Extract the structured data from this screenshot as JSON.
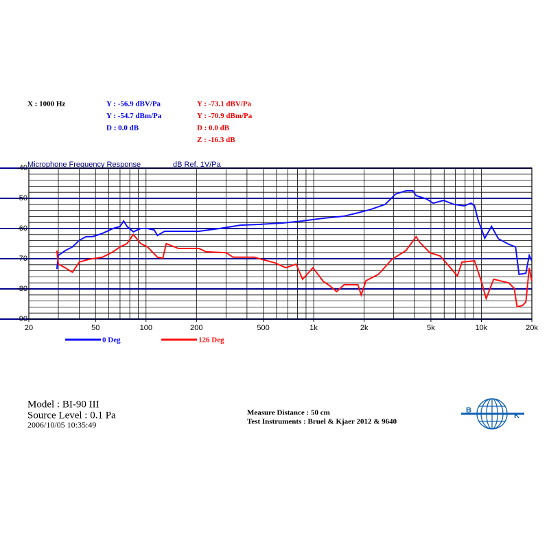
{
  "chart_data": {
    "type": "line",
    "title": "Microphone Frequency Response",
    "ylabel": "dB Ref. 1V/Pa",
    "xscale": "log",
    "grid": true,
    "xlim": [
      20,
      20000
    ],
    "ylim": [
      -90,
      -40
    ],
    "xticks": [
      20,
      50,
      100,
      200,
      500,
      {
        "value": 1000,
        "label": "1k"
      },
      {
        "value": 2000,
        "label": "2k"
      },
      {
        "value": 5000,
        "label": "5k"
      },
      {
        "value": 10000,
        "label": "10k"
      },
      {
        "value": 20000,
        "label": "20k"
      }
    ],
    "yticks": [
      -40,
      -50,
      -60,
      -70,
      -80,
      -90
    ],
    "cursor": {
      "x": "X : 1000 Hz",
      "readouts": [
        {
          "color": "#0000ee",
          "lines": [
            "Y : -56.9 dBV/Pa",
            "Y : -54.7 dBm/Pa",
            "D : 0.0 dB"
          ]
        },
        {
          "color": "#ee0000",
          "lines": [
            "Y : -73.1 dBV/Pa",
            "Y : -70.9 dBm/Pa",
            "D : 0.0 dB",
            "Z : -16.3 dB"
          ]
        }
      ]
    },
    "series": [
      {
        "name": "0 Deg",
        "color": "#1010ff",
        "x": [
          29.4,
          30,
          33,
          36.4,
          40,
          43.9,
          48,
          55,
          63.6,
          70,
          73.6,
          77,
          84,
          93,
          102,
          112,
          117,
          129,
          156,
          207,
          274,
          365,
          484,
          644,
          858,
          1140,
          1519,
          1834,
          2213,
          2670,
          3076,
          3550,
          3897,
          4083,
          4705,
          5164,
          5949,
          6855,
          7898,
          8680,
          9100,
          9540,
          10480,
          11500,
          12640,
          14560,
          16000,
          16770,
          18430,
          19300,
          20000
        ],
        "values": [
          -73.4,
          -68.9,
          -67.3,
          -66.1,
          -63.9,
          -62.7,
          -62.7,
          -61.6,
          -60,
          -59.3,
          -57.5,
          -59.3,
          -61.1,
          -60,
          -60,
          -60.5,
          -62.3,
          -60.9,
          -60.9,
          -60.9,
          -60,
          -58.9,
          -58.6,
          -58.2,
          -57.5,
          -56.6,
          -55.9,
          -54.8,
          -53.6,
          -52,
          -48.6,
          -47.5,
          -47.5,
          -49.1,
          -50.2,
          -51.6,
          -50.7,
          -52,
          -52.5,
          -51.6,
          -52.5,
          -57,
          -63.2,
          -59.3,
          -63.4,
          -65.2,
          -66.1,
          -75.2,
          -74.8,
          -68.9,
          -70.7
        ]
      },
      {
        "name": "126 Deg",
        "color": "#ff1010",
        "x": [
          29.4,
          30,
          33,
          36.4,
          40,
          45.7,
          55,
          63.6,
          70,
          77,
          84,
          93,
          102,
          117,
          126,
          132,
          156,
          207,
          228,
          301,
          330,
          441,
          589,
          681,
          786,
          858,
          990,
          1140,
          1250,
          1370,
          1519,
          1834,
          1920,
          2050,
          2430,
          2930,
          3550,
          4083,
          4280,
          4930,
          5680,
          6540,
          7190,
          7670,
          9100,
          10000,
          10680,
          11840,
          14560,
          15700,
          16330,
          17600,
          18430,
          19300,
          20000
        ],
        "values": [
          -67.3,
          -71.8,
          -73,
          -74.5,
          -71.1,
          -70.2,
          -69.5,
          -67.7,
          -66.1,
          -65,
          -62,
          -65,
          -66.1,
          -69.5,
          -69.8,
          -65,
          -66.6,
          -66.6,
          -67.7,
          -68,
          -69.5,
          -69.5,
          -71.4,
          -73,
          -71.8,
          -76.8,
          -73,
          -77.5,
          -79,
          -80.9,
          -78.6,
          -78.6,
          -82,
          -77.3,
          -75.2,
          -70.2,
          -67.3,
          -62.7,
          -64.5,
          -68,
          -69.1,
          -73,
          -75.7,
          -71.1,
          -70.7,
          -77.5,
          -83.2,
          -76.8,
          -78,
          -79.8,
          -85.9,
          -85.5,
          -84.3,
          -73,
          -77.5
        ]
      }
    ]
  },
  "footer": {
    "model": "Model :  BI-90   III",
    "source": "Source Level : 0.1 Pa",
    "date": "2006/10/05 10:35:49",
    "distance": "Measure Distance : 50 cm",
    "instruments": "Test Instruments : Bruel & Kjaer 2012 & 9640",
    "logo": [
      "B",
      "K"
    ]
  }
}
